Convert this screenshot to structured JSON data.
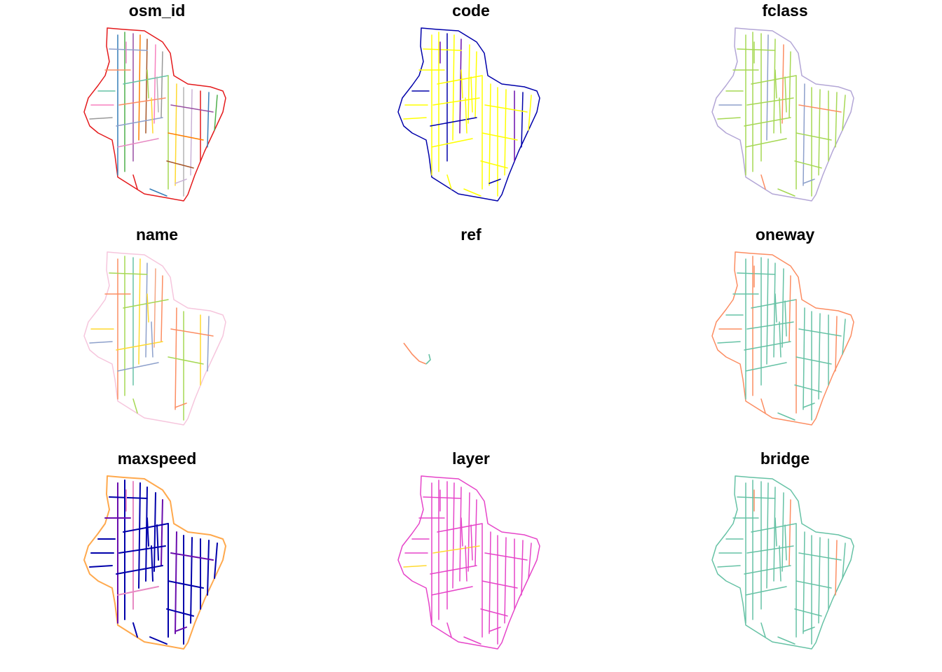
{
  "figure": {
    "panels": [
      {
        "title": "osm_id",
        "scheme": "multi",
        "palette": [
          "#e41a1c",
          "#377eb8",
          "#4daf4a",
          "#984ea3",
          "#ff7f00",
          "#a65628",
          "#f781bf",
          "#999999",
          "#66c2a5",
          "#fc8d62",
          "#8da0cb",
          "#e78ac3",
          "#a6d854",
          "#ffd92f",
          "#b3b3b3",
          "#cab2d6"
        ]
      },
      {
        "title": "code",
        "scheme": "code",
        "palette": [
          "#ffff00",
          "#0000aa",
          "#6a0dad"
        ]
      },
      {
        "title": "fclass",
        "scheme": "fclass",
        "palette": [
          "#a6d854",
          "#b3a6d6",
          "#8da0cb",
          "#e78ac3",
          "#fc8d62"
        ]
      },
      {
        "title": "name",
        "scheme": "name",
        "palette": [
          "#f6c6dd",
          "#f4a582",
          "#fc8d62",
          "#a6d854",
          "#66c2a5",
          "#ffd92f",
          "#8da0cb"
        ]
      },
      {
        "title": "ref",
        "scheme": "ref",
        "palette": [
          "#fc8d62",
          "#66c2a5"
        ]
      },
      {
        "title": "oneway",
        "scheme": "oneway",
        "palette": [
          "#66c2a5",
          "#fc8d62"
        ]
      },
      {
        "title": "maxspeed",
        "scheme": "maxspeed",
        "palette": [
          "#0000aa",
          "#6a0dad",
          "#e78ac3",
          "#ffa94d"
        ]
      },
      {
        "title": "layer",
        "scheme": "layer",
        "palette": [
          "#e645c9",
          "#ffd92f"
        ]
      },
      {
        "title": "bridge",
        "scheme": "bridge",
        "palette": [
          "#66c2a5",
          "#fc8d62"
        ]
      }
    ]
  }
}
